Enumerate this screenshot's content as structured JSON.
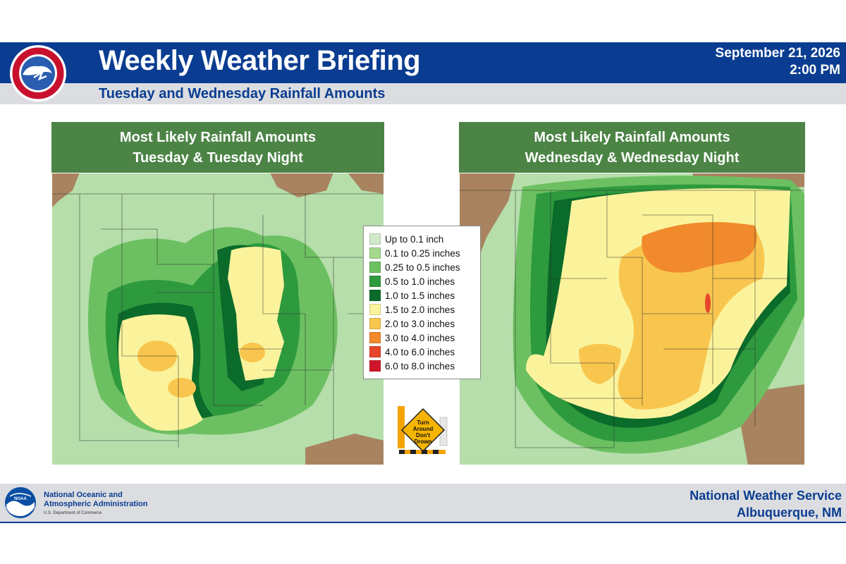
{
  "header": {
    "title": "Weekly Weather Briefing",
    "subtitle": "Tuesday and Wednesday Rainfall Amounts",
    "date": "September 21, 2026",
    "time": "2:00 PM",
    "logo_icon": "nws-logo-icon",
    "colors": {
      "band": "#0a3d91",
      "subband": "#dcdde1"
    }
  },
  "panels": [
    {
      "title_line1": "Most Likely Rainfall Amounts",
      "title_line2": "Tuesday & Tuesday Night"
    },
    {
      "title_line1": "Most Likely Rainfall Amounts",
      "title_line2": "Wednesday & Wednesday Night"
    }
  ],
  "legend": {
    "items": [
      {
        "label": "Up to 0.1 inch",
        "color": "#cfe9c8"
      },
      {
        "label": "0.1 to 0.25 inches",
        "color": "#a6d98f"
      },
      {
        "label": "0.25 to 0.5 inches",
        "color": "#6cc061"
      },
      {
        "label": "0.5 to 1.0 inches",
        "color": "#2e9a3e"
      },
      {
        "label": "1.0 to 1.5 inches",
        "color": "#0b6b2a"
      },
      {
        "label": "1.5 to 2.0 inches",
        "color": "#fbf39c"
      },
      {
        "label": "2.0 to 3.0 inches",
        "color": "#f8c64f"
      },
      {
        "label": "3.0 to 4.0 inches",
        "color": "#f08a2c"
      },
      {
        "label": "4.0 to 6.0 inches",
        "color": "#e8462a"
      },
      {
        "label": "6.0 to 8.0 inches",
        "color": "#d0162b"
      }
    ]
  },
  "sign": {
    "text": "Turn Around Don't Drown",
    "icon": "turn-around-dont-drown-icon"
  },
  "footer": {
    "noaa_line1": "National Oceanic and",
    "noaa_line2": "Atmospheric Administration",
    "noaa_line3": "U.S. Department of Commerce",
    "nws_line1": "National Weather Service",
    "nws_line2": "Albuquerque, NM",
    "logo_icon": "noaa-logo-icon"
  }
}
